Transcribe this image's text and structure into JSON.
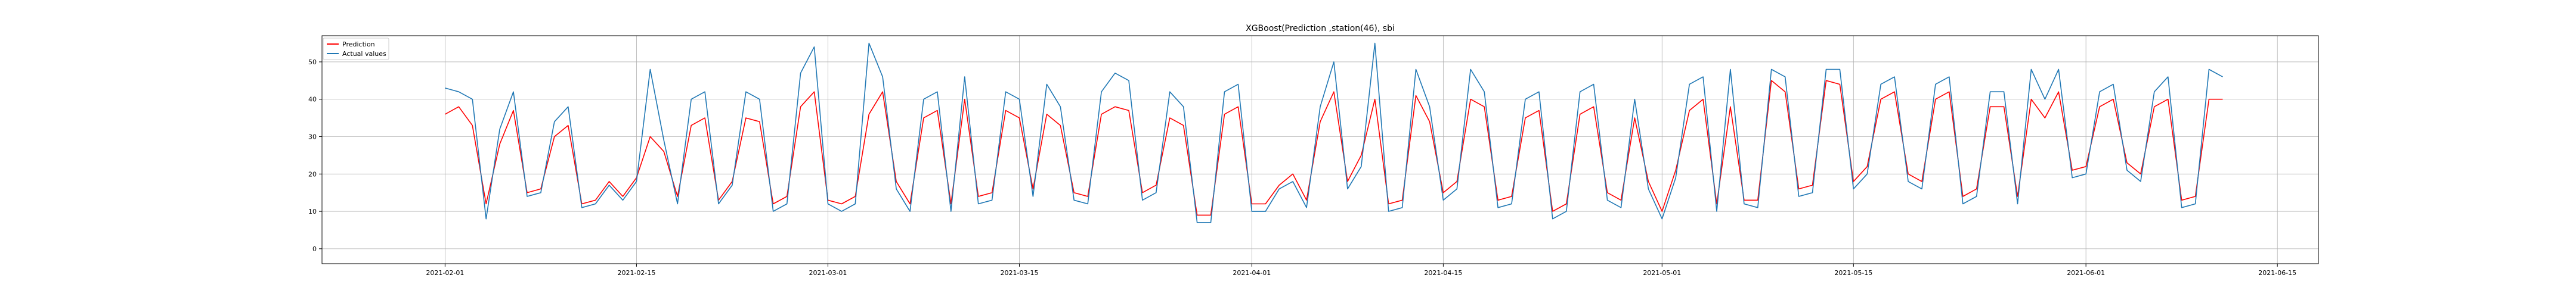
{
  "chart_data": {
    "type": "line",
    "title": "XGBoost(Prediction ,station(46), sbi",
    "xlabel": "",
    "ylabel": "",
    "xlim": [
      "2021-01-23",
      "2021-06-18"
    ],
    "ylim": [
      -4,
      57
    ],
    "x_ticks": [
      "2021-02-01",
      "2021-02-15",
      "2021-03-01",
      "2021-03-15",
      "2021-04-01",
      "2021-04-15",
      "2021-05-01",
      "2021-05-15",
      "2021-06-01",
      "2021-06-15"
    ],
    "y_ticks": [
      0,
      10,
      20,
      30,
      40,
      50
    ],
    "grid": true,
    "legend_position": "top-left",
    "series": [
      {
        "name": "Prediction",
        "color": "#ff0000",
        "x": [
          "2021-02-01",
          "2021-02-02",
          "2021-02-03",
          "2021-02-04",
          "2021-02-05",
          "2021-02-06",
          "2021-02-07",
          "2021-02-08",
          "2021-02-09",
          "2021-02-10",
          "2021-02-11",
          "2021-02-12",
          "2021-02-13",
          "2021-02-14",
          "2021-02-15",
          "2021-02-16",
          "2021-02-17",
          "2021-02-18",
          "2021-02-19",
          "2021-02-20",
          "2021-02-21",
          "2021-02-22",
          "2021-02-23",
          "2021-02-24",
          "2021-02-25",
          "2021-02-26",
          "2021-02-27",
          "2021-02-28",
          "2021-03-01",
          "2021-03-02",
          "2021-03-03",
          "2021-03-04",
          "2021-03-05",
          "2021-03-06",
          "2021-03-07",
          "2021-03-08",
          "2021-03-09",
          "2021-03-10",
          "2021-03-11",
          "2021-03-12",
          "2021-03-13",
          "2021-03-14",
          "2021-03-15",
          "2021-03-16",
          "2021-03-17",
          "2021-03-18",
          "2021-03-19",
          "2021-03-20",
          "2021-03-21",
          "2021-03-22",
          "2021-03-23",
          "2021-03-24",
          "2021-03-25",
          "2021-03-26",
          "2021-03-27",
          "2021-03-28",
          "2021-03-29",
          "2021-03-30",
          "2021-03-31",
          "2021-04-01",
          "2021-04-02",
          "2021-04-03",
          "2021-04-04",
          "2021-04-05",
          "2021-04-06",
          "2021-04-07",
          "2021-04-08",
          "2021-04-09",
          "2021-04-10",
          "2021-04-11",
          "2021-04-12",
          "2021-04-13",
          "2021-04-14",
          "2021-04-15",
          "2021-04-16",
          "2021-04-17",
          "2021-04-18",
          "2021-04-19",
          "2021-04-20",
          "2021-04-21",
          "2021-04-22",
          "2021-04-23",
          "2021-04-24",
          "2021-04-25",
          "2021-04-26",
          "2021-04-27",
          "2021-04-28",
          "2021-04-29",
          "2021-04-30",
          "2021-05-01",
          "2021-05-02",
          "2021-05-03",
          "2021-05-04",
          "2021-05-05",
          "2021-05-06",
          "2021-05-07",
          "2021-05-08",
          "2021-05-09",
          "2021-05-10",
          "2021-05-11",
          "2021-05-12",
          "2021-05-13",
          "2021-05-14",
          "2021-05-15",
          "2021-05-16",
          "2021-05-17",
          "2021-05-18",
          "2021-05-19",
          "2021-05-20",
          "2021-05-21",
          "2021-05-22",
          "2021-05-23",
          "2021-05-24",
          "2021-05-25",
          "2021-05-26",
          "2021-05-27",
          "2021-05-28",
          "2021-05-29",
          "2021-05-30",
          "2021-05-31",
          "2021-06-01",
          "2021-06-02",
          "2021-06-03",
          "2021-06-04",
          "2021-06-05",
          "2021-06-06",
          "2021-06-07",
          "2021-06-08",
          "2021-06-09",
          "2021-06-10",
          "2021-06-11"
        ],
        "values": [
          36,
          38,
          33,
          12,
          28,
          37,
          15,
          16,
          30,
          33,
          12,
          13,
          18,
          14,
          19,
          30,
          26,
          14,
          33,
          35,
          13,
          18,
          35,
          34,
          12,
          14,
          38,
          42,
          13,
          12,
          14,
          36,
          42,
          18,
          12,
          35,
          37,
          12,
          40,
          14,
          15,
          37,
          35,
          16,
          36,
          33,
          15,
          14,
          36,
          38,
          37,
          15,
          17,
          35,
          33,
          9,
          9,
          36,
          38,
          12,
          12,
          17,
          20,
          13,
          34,
          42,
          18,
          25,
          40,
          12,
          13,
          41,
          34,
          15,
          18,
          40,
          38,
          13,
          14,
          35,
          37,
          10,
          12,
          36,
          38,
          15,
          13,
          35,
          18,
          10,
          21,
          37,
          40,
          12,
          38,
          13,
          13,
          45,
          42,
          16,
          17,
          45,
          44,
          18,
          22,
          40,
          42,
          20,
          18,
          40,
          42,
          14,
          16,
          38,
          38,
          14,
          40,
          35,
          42,
          21,
          22,
          38,
          40,
          23,
          20,
          38,
          40,
          13,
          14,
          40,
          40
        ]
      },
      {
        "name": "Actual values",
        "color": "#1f77b4",
        "x": [
          "2021-02-01",
          "2021-02-02",
          "2021-02-03",
          "2021-02-04",
          "2021-02-05",
          "2021-02-06",
          "2021-02-07",
          "2021-02-08",
          "2021-02-09",
          "2021-02-10",
          "2021-02-11",
          "2021-02-12",
          "2021-02-13",
          "2021-02-14",
          "2021-02-15",
          "2021-02-16",
          "2021-02-17",
          "2021-02-18",
          "2021-02-19",
          "2021-02-20",
          "2021-02-21",
          "2021-02-22",
          "2021-02-23",
          "2021-02-24",
          "2021-02-25",
          "2021-02-26",
          "2021-02-27",
          "2021-02-28",
          "2021-03-01",
          "2021-03-02",
          "2021-03-03",
          "2021-03-04",
          "2021-03-05",
          "2021-03-06",
          "2021-03-07",
          "2021-03-08",
          "2021-03-09",
          "2021-03-10",
          "2021-03-11",
          "2021-03-12",
          "2021-03-13",
          "2021-03-14",
          "2021-03-15",
          "2021-03-16",
          "2021-03-17",
          "2021-03-18",
          "2021-03-19",
          "2021-03-20",
          "2021-03-21",
          "2021-03-22",
          "2021-03-23",
          "2021-03-24",
          "2021-03-25",
          "2021-03-26",
          "2021-03-27",
          "2021-03-28",
          "2021-03-29",
          "2021-03-30",
          "2021-03-31",
          "2021-04-01",
          "2021-04-02",
          "2021-04-03",
          "2021-04-04",
          "2021-04-05",
          "2021-04-06",
          "2021-04-07",
          "2021-04-08",
          "2021-04-09",
          "2021-04-10",
          "2021-04-11",
          "2021-04-12",
          "2021-04-13",
          "2021-04-14",
          "2021-04-15",
          "2021-04-16",
          "2021-04-17",
          "2021-04-18",
          "2021-04-19",
          "2021-04-20",
          "2021-04-21",
          "2021-04-22",
          "2021-04-23",
          "2021-04-24",
          "2021-04-25",
          "2021-04-26",
          "2021-04-27",
          "2021-04-28",
          "2021-04-29",
          "2021-04-30",
          "2021-05-01",
          "2021-05-02",
          "2021-05-03",
          "2021-05-04",
          "2021-05-05",
          "2021-05-06",
          "2021-05-07",
          "2021-05-08",
          "2021-05-09",
          "2021-05-10",
          "2021-05-11",
          "2021-05-12",
          "2021-05-13",
          "2021-05-14",
          "2021-05-15",
          "2021-05-16",
          "2021-05-17",
          "2021-05-18",
          "2021-05-19",
          "2021-05-20",
          "2021-05-21",
          "2021-05-22",
          "2021-05-23",
          "2021-05-24",
          "2021-05-25",
          "2021-05-26",
          "2021-05-27",
          "2021-05-28",
          "2021-05-29",
          "2021-05-30",
          "2021-05-31",
          "2021-06-01",
          "2021-06-02",
          "2021-06-03",
          "2021-06-04",
          "2021-06-05",
          "2021-06-06",
          "2021-06-07",
          "2021-06-08",
          "2021-06-09",
          "2021-06-10",
          "2021-06-11"
        ],
        "values": [
          43,
          42,
          40,
          8,
          32,
          42,
          14,
          15,
          34,
          38,
          11,
          12,
          17,
          13,
          18,
          48,
          29,
          12,
          40,
          42,
          12,
          17,
          42,
          40,
          10,
          12,
          47,
          54,
          12,
          10,
          12,
          55,
          46,
          16,
          10,
          40,
          42,
          10,
          46,
          12,
          13,
          42,
          40,
          14,
          44,
          38,
          13,
          12,
          42,
          47,
          45,
          13,
          15,
          42,
          38,
          7,
          7,
          42,
          44,
          10,
          10,
          16,
          18,
          11,
          38,
          50,
          16,
          22,
          55,
          10,
          11,
          48,
          38,
          13,
          16,
          48,
          42,
          11,
          12,
          40,
          42,
          8,
          10,
          42,
          44,
          13,
          11,
          40,
          16,
          8,
          19,
          44,
          46,
          10,
          48,
          12,
          11,
          48,
          46,
          14,
          15,
          48,
          48,
          16,
          20,
          44,
          46,
          18,
          16,
          44,
          46,
          12,
          14,
          42,
          42,
          12,
          48,
          40,
          48,
          19,
          20,
          42,
          44,
          21,
          18,
          42,
          46,
          11,
          12,
          48,
          46
        ]
      }
    ]
  }
}
